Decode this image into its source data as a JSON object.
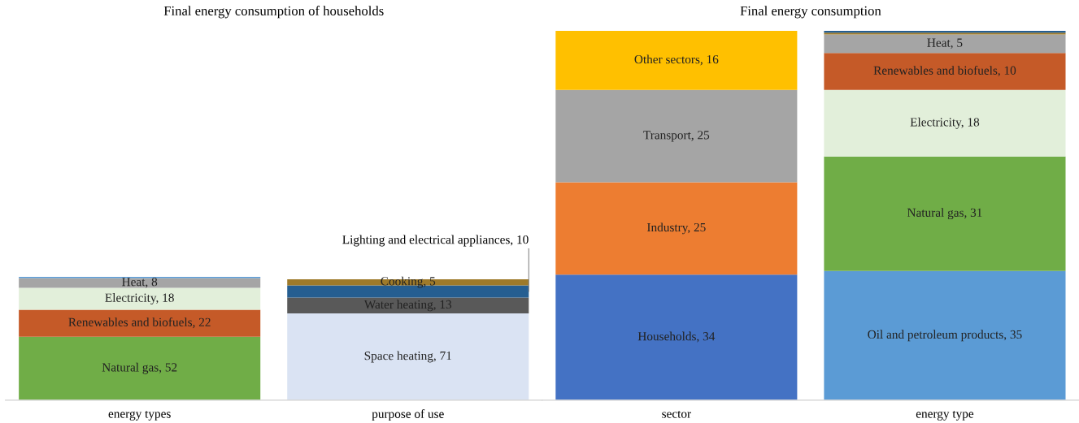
{
  "chart_data": [
    {
      "type": "bar",
      "stacked": true,
      "title": "Final energy consumption of households",
      "tick_labels": "x",
      "categories": [
        "energy types",
        "purpose of use"
      ],
      "series": [
        {
          "colors": [
            "#70ad47",
            "#dae3f3"
          ],
          "values": [
            52,
            71
          ],
          "value_labels": [
            "Natural gas, 52",
            "Space heating, 71"
          ]
        },
        {
          "colors": [
            "#c55a28",
            "#595959"
          ],
          "values": [
            22,
            13
          ],
          "value_labels": [
            "Renewables and biofuels, 22",
            "Water heating, 13"
          ]
        },
        {
          "colors": [
            "#e2efda",
            "#255e91"
          ],
          "values": [
            18,
            10
          ],
          "value_labels": [
            "Electricity, 18",
            null
          ]
        },
        {
          "colors": [
            "#a5a5a5",
            "#9e7a2a"
          ],
          "values": [
            8,
            5
          ],
          "value_labels": [
            "Heat, 8",
            "Cooking, 5"
          ]
        },
        {
          "colors": [
            "#5b9bd5",
            null
          ],
          "values": [
            1,
            null
          ],
          "value_labels": [
            null,
            null
          ]
        }
      ],
      "annotations": [
        "Lighting and electrical appliances, 10"
      ],
      "legend": false,
      "grid": false
    },
    {
      "type": "bar",
      "stacked": true,
      "title": "Final energy consumption",
      "ylim": [
        0,
        100
      ],
      "tick_labels": "x",
      "categories": [
        "sector",
        "energy type"
      ],
      "series": [
        {
          "colors": [
            "#4472c4",
            "#5b9bd5"
          ],
          "values": [
            34,
            35
          ],
          "value_labels": [
            "Households, 34",
            "Oil and petroleum products, 35"
          ]
        },
        {
          "colors": [
            "#ed7d31",
            "#70ad47"
          ],
          "values": [
            25,
            31
          ],
          "value_labels": [
            "Industry, 25",
            "Natural gas, 31"
          ]
        },
        {
          "colors": [
            "#a5a5a5",
            "#e2efda"
          ],
          "values": [
            25,
            18
          ],
          "value_labels": [
            "Transport, 25",
            "Electricity, 18"
          ]
        },
        {
          "colors": [
            "#ffc000",
            "#c55a28"
          ],
          "values": [
            16,
            10
          ],
          "value_labels": [
            "Other sectors, 16",
            "Renewables and biofuels, 10"
          ]
        },
        {
          "colors": [
            null,
            "#a5a5a5"
          ],
          "values": [
            null,
            5
          ],
          "value_labels": [
            null,
            "Heat, 5"
          ]
        },
        {
          "colors": [
            null,
            "#9e7a2a"
          ],
          "values": [
            null,
            0.5
          ],
          "value_labels": [
            null,
            null
          ]
        },
        {
          "colors": [
            null,
            "#255e91"
          ],
          "values": [
            null,
            0.5
          ],
          "value_labels": [
            null,
            null
          ]
        }
      ],
      "legend": false,
      "grid": false
    }
  ]
}
